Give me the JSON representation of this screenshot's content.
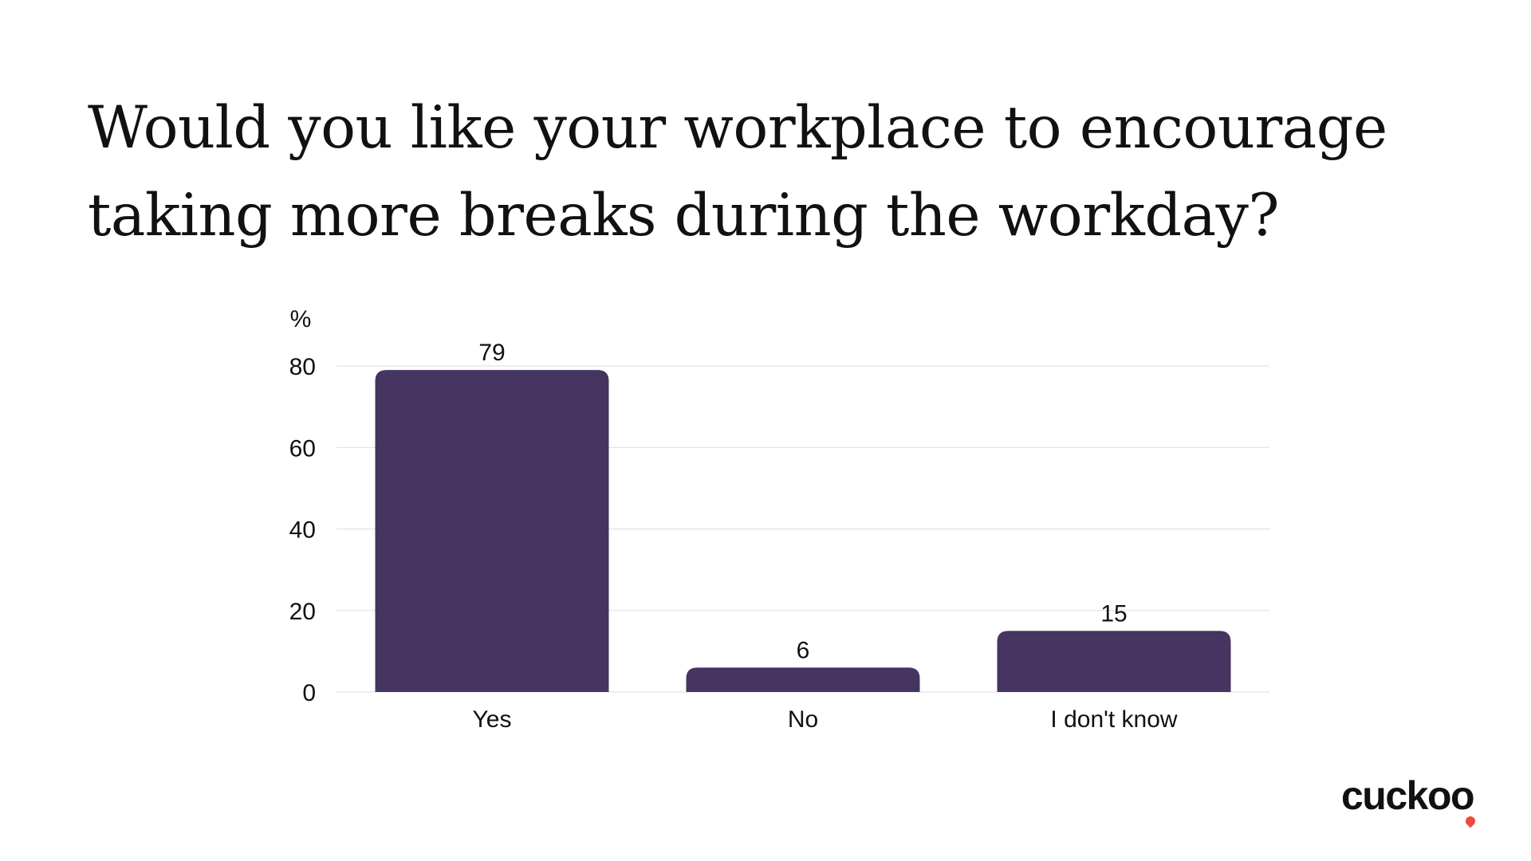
{
  "title_lines": [
    "Would you like your workplace to encourage",
    "taking more breaks during the workday?"
  ],
  "brand": {
    "name": "cuckoo",
    "accent_color": "#ef4a3c"
  },
  "colors": {
    "bar": "#463461",
    "grid": "#dddddd",
    "text": "#111111"
  },
  "chart_data": {
    "type": "bar",
    "title": "Would you like your workplace to encourage taking more breaks during the workday?",
    "categories": [
      "Yes",
      "No",
      "I don't know"
    ],
    "values": [
      79,
      6,
      15
    ],
    "data_labels": [
      "79",
      "6",
      "15"
    ],
    "ylabel": "%",
    "xlabel": "",
    "ylim": [
      0,
      80
    ],
    "yticks": [
      0,
      20,
      40,
      60,
      80
    ],
    "ytick_labels": [
      "0",
      "20",
      "40",
      "60",
      "80"
    ],
    "grid": true,
    "legend": "none"
  }
}
